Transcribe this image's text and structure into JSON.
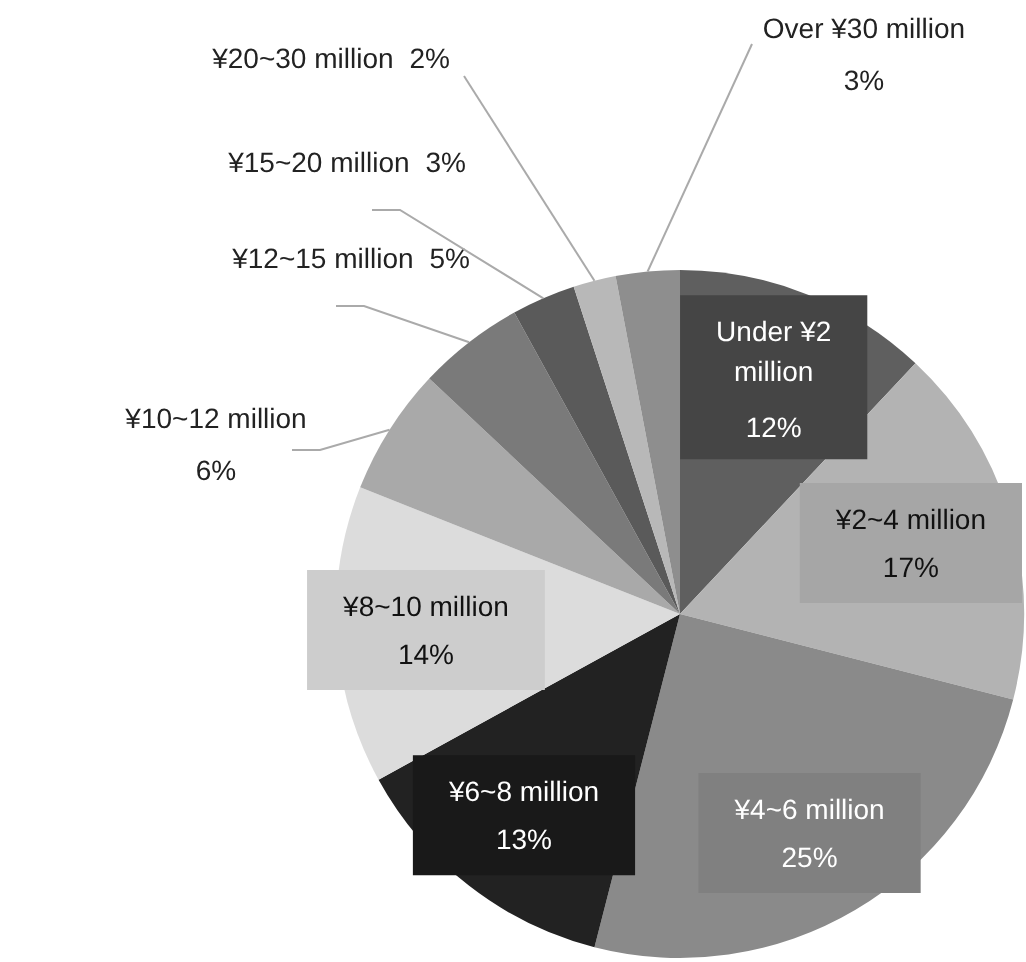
{
  "chart_data": {
    "type": "pie",
    "categories": [
      "Under ¥2 million",
      "¥2~4 million",
      "¥4~6 million",
      "¥6~8 million",
      "¥8~10 million",
      "¥10~12 million",
      "¥12~15 million",
      "¥15~20 million",
      "¥20~30 million",
      "Over ¥30 million"
    ],
    "values": [
      12,
      17,
      25,
      13,
      14,
      6,
      5,
      3,
      2,
      3
    ],
    "value_labels": [
      "12%",
      "17%",
      "25%",
      "13%",
      "14%",
      "6%",
      "5%",
      "3%",
      "2%",
      "3%"
    ],
    "colors": [
      "#5f5f5f",
      "#b3b3b3",
      "#8a8a8a",
      "#222222",
      "#dcdcdc",
      "#a9a9a9",
      "#7a7a7a",
      "#5a5a5a",
      "#b8b8b8",
      "#8e8e8e"
    ],
    "legend": false
  }
}
